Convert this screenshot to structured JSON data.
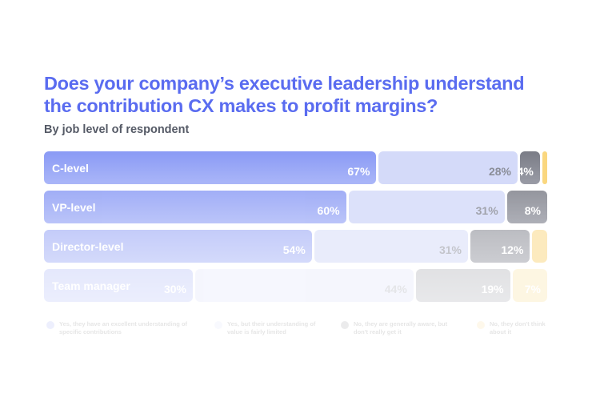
{
  "chart_data": {
    "type": "bar",
    "stacked": true,
    "orientation": "horizontal",
    "title": "Does your company’s executive leadership understand the contribution CX makes to profit margins?",
    "subtitle": "By job level of respondent",
    "categories": [
      "C-level",
      "VP-level",
      "Director-level",
      "Team manager"
    ],
    "series": [
      {
        "name": "Yes, they have an excellent understanding of specific contributions",
        "color": "#8c9cf5",
        "values": [
          67,
          60,
          54,
          30
        ],
        "labels": [
          "67%",
          "60%",
          "54%",
          "30%"
        ]
      },
      {
        "name": "Yes, but their understanding of value is fairly limited",
        "color": "#d4daf9",
        "values": [
          28,
          31,
          31,
          44
        ],
        "labels": [
          "28%",
          "31%",
          "31%",
          "44%"
        ]
      },
      {
        "name": "No, they are generally aware, but don't really get it",
        "color": "#7d7f88",
        "values": [
          4,
          8,
          12,
          19
        ],
        "labels": [
          "4%",
          "8%",
          "12%",
          "19%"
        ]
      },
      {
        "name": "No, they don't think about it",
        "color": "#fad77f",
        "values": [
          1,
          0,
          3,
          7
        ],
        "labels": [
          "",
          "",
          "",
          "7%"
        ]
      }
    ],
    "xlim": [
      0,
      100
    ]
  }
}
